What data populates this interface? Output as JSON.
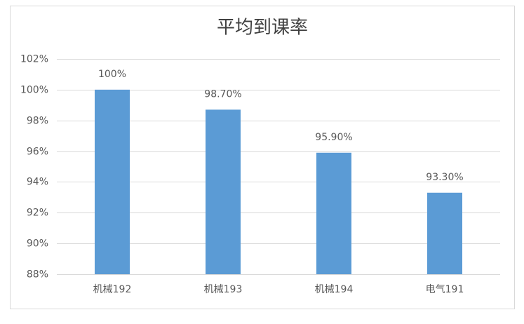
{
  "chart_data": {
    "type": "bar",
    "title": "平均到课率",
    "categories": [
      "机械192",
      "机械193",
      "机械194",
      "电气191"
    ],
    "values": [
      100,
      98.7,
      95.9,
      93.3
    ],
    "value_labels": [
      "100%",
      "98.70%",
      "95.90%",
      "93.30%"
    ],
    "color": "#5b9bd5",
    "ylim": [
      88,
      102
    ],
    "yticks": [
      {
        "value": 88,
        "label": "88%"
      },
      {
        "value": 90,
        "label": "90%"
      },
      {
        "value": 92,
        "label": "92%"
      },
      {
        "value": 94,
        "label": "94%"
      },
      {
        "value": 96,
        "label": "96%"
      },
      {
        "value": 98,
        "label": "98%"
      },
      {
        "value": 100,
        "label": "100%"
      },
      {
        "value": 102,
        "label": "102%"
      }
    ],
    "grid": true
  }
}
